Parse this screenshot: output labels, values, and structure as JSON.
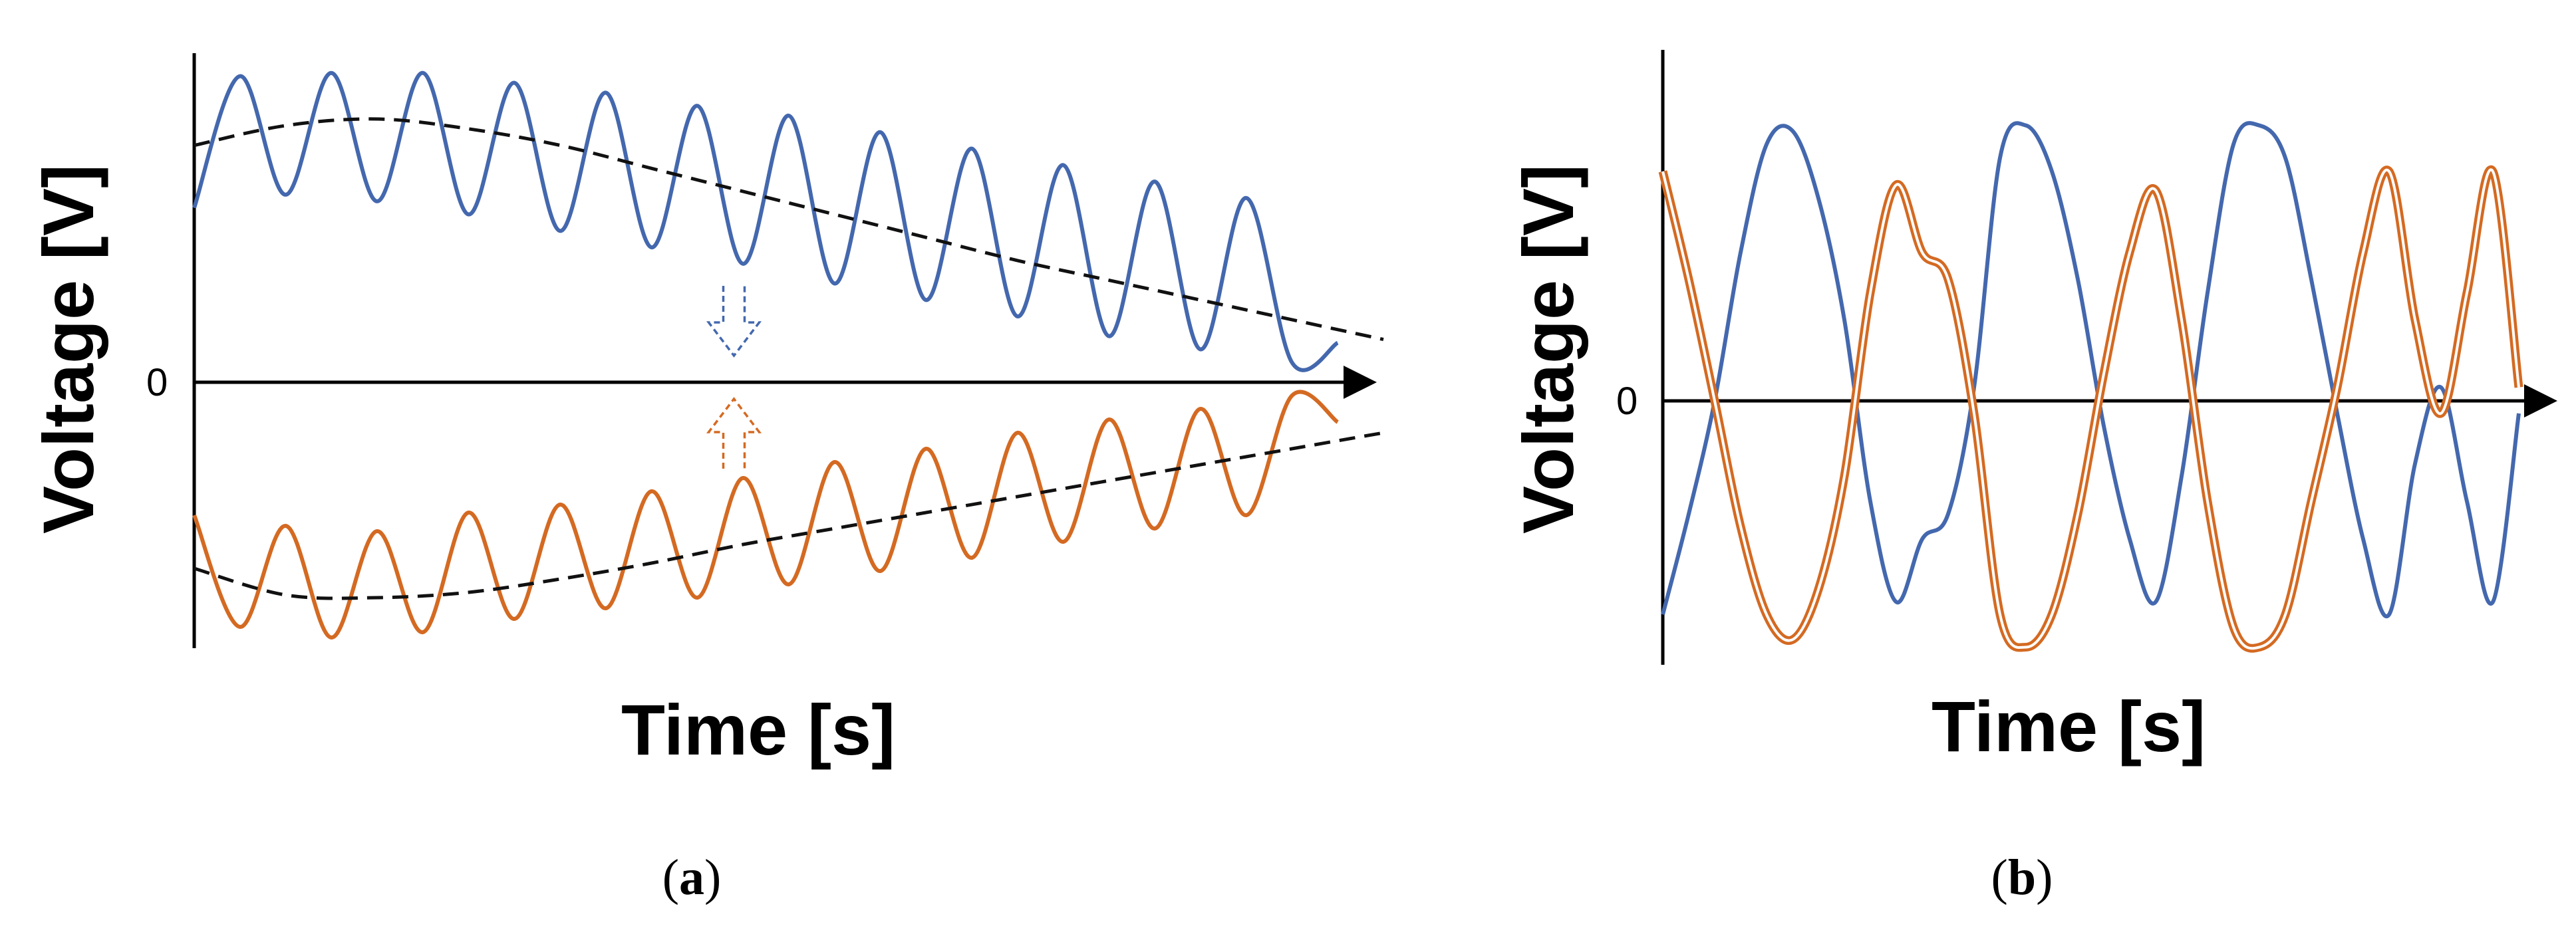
{
  "colors": {
    "blue": "#4468AE",
    "orange": "#D46A22",
    "trend": "#111111"
  },
  "chart_data": [
    {
      "type": "line",
      "panel_label": "a",
      "xlabel": "Time [s]",
      "ylabel": "Voltage [V]",
      "y_zero_label": "0",
      "xlim": [
        0,
        12.6
      ],
      "ylim": [
        -1.0,
        1.0
      ],
      "series": [
        {
          "color": "blue",
          "style": "solid",
          "x": [
            0,
            0.5,
            1,
            1.5,
            2,
            2.5,
            3,
            3.5,
            4,
            4.5,
            5,
            5.5,
            6,
            6.5,
            7,
            7.5,
            8,
            8.5,
            9,
            9.5,
            10,
            10.5,
            11,
            11.5,
            12,
            12.5
          ],
          "values": [
            0.53,
            0.93,
            0.57,
            0.94,
            0.55,
            0.94,
            0.51,
            0.91,
            0.46,
            0.88,
            0.41,
            0.84,
            0.36,
            0.81,
            0.3,
            0.76,
            0.25,
            0.71,
            0.2,
            0.66,
            0.14,
            0.61,
            0.1,
            0.56,
            0.06,
            0.12
          ]
        },
        {
          "color": "trend",
          "style": "dashed",
          "x": [
            0,
            1,
            2,
            3,
            4,
            5,
            6,
            7,
            8,
            9,
            10,
            11,
            12,
            13
          ],
          "values": [
            0.72,
            0.78,
            0.8,
            0.77,
            0.72,
            0.65,
            0.58,
            0.51,
            0.44,
            0.37,
            0.31,
            0.25,
            0.19,
            0.13
          ]
        },
        {
          "color": "orange",
          "style": "solid",
          "x": [
            0,
            0.5,
            1,
            1.5,
            2,
            2.5,
            3,
            3.5,
            4,
            4.5,
            5,
            5.5,
            6,
            6.5,
            7,
            7.5,
            8,
            8.5,
            9,
            9.5,
            10,
            10.5,
            11,
            11.5,
            12,
            12.5
          ],
          "values": [
            -0.5,
            -0.92,
            -0.54,
            -0.96,
            -0.56,
            -0.94,
            -0.49,
            -0.89,
            -0.46,
            -0.85,
            -0.41,
            -0.81,
            -0.36,
            -0.76,
            -0.3,
            -0.71,
            -0.25,
            -0.66,
            -0.19,
            -0.6,
            -0.14,
            -0.55,
            -0.1,
            -0.5,
            -0.05,
            -0.15
          ]
        },
        {
          "color": "trend",
          "style": "dashed",
          "x": [
            0,
            1,
            2,
            3,
            4,
            5,
            6,
            7,
            8,
            9,
            10,
            11,
            12,
            13
          ],
          "values": [
            -0.7,
            -0.8,
            -0.81,
            -0.79,
            -0.74,
            -0.68,
            -0.61,
            -0.55,
            -0.49,
            -0.43,
            -0.37,
            -0.31,
            -0.25,
            -0.19
          ]
        }
      ],
      "annotations": [
        {
          "type": "arrow-down",
          "color": "blue",
          "style": "dashed",
          "x": 5.9
        },
        {
          "type": "arrow-up",
          "color": "orange",
          "style": "dashed",
          "x": 5.9
        }
      ]
    },
    {
      "type": "line",
      "panel_label": "b",
      "xlabel": "Time [s]",
      "ylabel": "Voltage [V]",
      "y_zero_label": "0",
      "xlim": [
        0,
        10.0
      ],
      "ylim": [
        -1.05,
        1.3
      ],
      "series": [
        {
          "color": "blue",
          "style": "solid",
          "x": [
            0,
            0.3,
            0.6,
            0.9,
            1.2,
            1.5,
            1.8,
            2.1,
            2.4,
            2.7,
            3.0,
            3.3,
            3.6,
            3.9,
            4.2,
            4.5,
            4.8,
            5.1,
            5.4,
            5.7,
            6.0,
            6.3,
            6.6,
            6.9,
            7.2,
            7.5,
            7.8,
            8.1,
            8.4,
            8.7,
            9.0,
            9.3,
            9.6,
            9.9
          ],
          "values": [
            -0.85,
            -0.45,
            0.0,
            0.55,
            0.95,
            1.0,
            0.75,
            0.3,
            -0.4,
            -0.8,
            -0.55,
            -0.45,
            0.05,
            0.9,
            1.02,
            0.85,
            0.45,
            -0.1,
            -0.55,
            -0.8,
            -0.3,
            0.4,
            0.95,
            1.02,
            0.9,
            0.45,
            -0.05,
            -0.55,
            -0.85,
            -0.25,
            0.05,
            -0.4,
            -0.8,
            -0.05
          ]
        },
        {
          "color": "orange",
          "style": "double",
          "x": [
            0,
            0.3,
            0.6,
            0.9,
            1.2,
            1.5,
            1.8,
            2.1,
            2.4,
            2.7,
            3.0,
            3.3,
            3.6,
            3.9,
            4.2,
            4.5,
            4.8,
            5.1,
            5.4,
            5.7,
            6.0,
            6.3,
            6.6,
            6.9,
            7.2,
            7.5,
            7.8,
            8.1,
            8.4,
            8.7,
            9.0,
            9.3,
            9.6,
            9.9
          ],
          "values": [
            0.85,
            0.45,
            0.0,
            -0.5,
            -0.85,
            -0.95,
            -0.75,
            -0.3,
            0.4,
            0.8,
            0.55,
            0.45,
            -0.05,
            -0.85,
            -0.98,
            -0.85,
            -0.45,
            0.1,
            0.55,
            0.78,
            0.3,
            -0.4,
            -0.9,
            -0.98,
            -0.85,
            -0.4,
            0.05,
            0.55,
            0.85,
            0.3,
            -0.05,
            0.4,
            0.85,
            0.05
          ]
        }
      ]
    }
  ]
}
